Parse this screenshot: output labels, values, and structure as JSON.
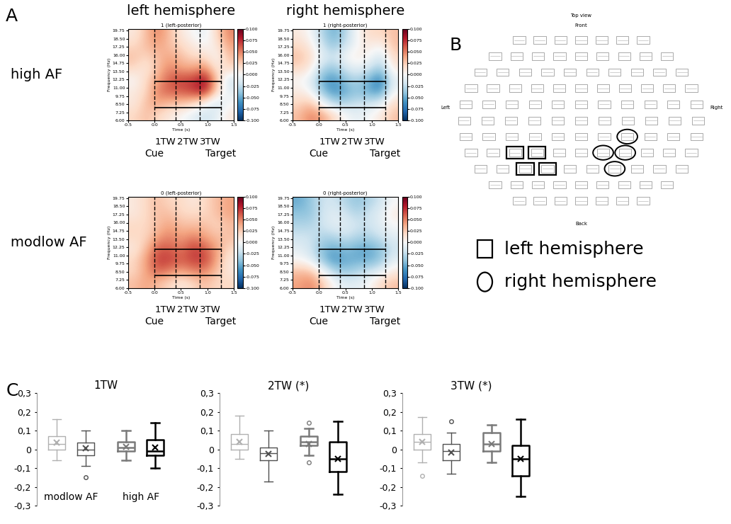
{
  "panel_labels": [
    "A",
    "B",
    "C"
  ],
  "chart_data": [
    {
      "type": "heatmap",
      "columns": [
        "left hemisphere",
        "right hemisphere"
      ],
      "rows": [
        "high AF",
        "modlow AF"
      ],
      "xlabel": "Time (s)",
      "ylabel": "Frequency (Hz)",
      "xlim": [
        -0.5,
        1.5
      ],
      "xticks": [
        -0.5,
        0.0,
        0.5,
        1.0,
        1.5
      ],
      "ylim": [
        6,
        20
      ],
      "yticks": [
        {
          "value": 6,
          "label": "6.00"
        },
        {
          "value": 7.25,
          "label": "7.25"
        },
        {
          "value": 8.5,
          "label": "8.50"
        },
        {
          "value": 9.75,
          "label": "9.75"
        },
        {
          "value": 11,
          "label": "11.00"
        },
        {
          "value": 12.25,
          "label": "12.25"
        },
        {
          "value": 13.5,
          "label": "13.50"
        },
        {
          "value": 14.75,
          "label": "14.75"
        },
        {
          "value": 16,
          "label": "16.00"
        },
        {
          "value": 17.25,
          "label": "17.25"
        },
        {
          "value": 18.5,
          "label": "18.50"
        },
        {
          "value": 19.75,
          "label": "19.75"
        }
      ],
      "colorbar": {
        "range": [
          -0.1,
          0.1
        ],
        "ticks": [
          {
            "value": -0.1,
            "label": "-0.100"
          },
          {
            "value": -0.075,
            "label": "-0.075"
          },
          {
            "value": -0.05,
            "label": "-0.050"
          },
          {
            "value": -0.025,
            "label": "-0.025"
          },
          {
            "value": 0,
            "label": "0.000"
          },
          {
            "value": 0.025,
            "label": "0.025"
          },
          {
            "value": 0.05,
            "label": "0.050"
          },
          {
            "value": 0.075,
            "label": "0.075"
          },
          {
            "value": 0.1,
            "label": "0.100"
          }
        ]
      },
      "window_bounds": [
        0.0,
        0.4,
        0.85,
        1.25
      ],
      "window_labels": [
        "1TW",
        "2TW",
        "3TW"
      ],
      "events": [
        {
          "label": "Cue",
          "time": 0.0
        },
        {
          "label": "Target",
          "time": 1.25
        }
      ],
      "band": [
        8,
        12
      ],
      "panels": [
        {
          "title": "1 (left-posterior)",
          "cells": [
            [
              0.02,
              0.03,
              0.02,
              0.01,
              0.0,
              -0.01,
              -0.02,
              -0.01,
              0.01
            ],
            [
              0.01,
              0.03,
              0.04,
              0.03,
              0.03,
              0.02,
              0.0,
              -0.02,
              0.0
            ],
            [
              0.01,
              0.02,
              0.05,
              0.06,
              0.06,
              0.07,
              0.08,
              0.02,
              -0.01
            ],
            [
              0.0,
              0.02,
              0.04,
              0.06,
              0.07,
              0.07,
              0.09,
              0.03,
              -0.02
            ],
            [
              0.02,
              0.01,
              0.03,
              0.05,
              0.04,
              0.04,
              0.05,
              0.01,
              0.02
            ],
            [
              0.03,
              0.02,
              0.03,
              0.04,
              0.03,
              0.02,
              0.02,
              0.0,
              0.03
            ],
            [
              0.02,
              0.03,
              0.04,
              0.03,
              0.02,
              0.01,
              0.0,
              0.01,
              0.04
            ],
            [
              0.01,
              0.03,
              0.05,
              0.03,
              0.01,
              0.0,
              -0.01,
              0.02,
              0.05
            ]
          ]
        },
        {
          "title": "1 (right-posterior)",
          "cells": [
            [
              0.03,
              0.05,
              0.04,
              0.02,
              0.0,
              -0.01,
              0.0,
              0.01,
              0.03
            ],
            [
              0.02,
              0.03,
              0.0,
              -0.03,
              -0.03,
              -0.02,
              -0.02,
              -0.01,
              0.02
            ],
            [
              0.01,
              0.0,
              -0.04,
              -0.06,
              -0.05,
              -0.04,
              -0.05,
              -0.06,
              0.0
            ],
            [
              0.0,
              -0.01,
              -0.05,
              -0.06,
              -0.04,
              -0.03,
              -0.05,
              -0.07,
              -0.01
            ],
            [
              0.02,
              0.01,
              -0.03,
              -0.04,
              -0.02,
              -0.01,
              -0.02,
              -0.04,
              0.01
            ],
            [
              0.03,
              0.02,
              -0.01,
              -0.02,
              0.0,
              0.01,
              0.0,
              -0.02,
              0.02
            ],
            [
              0.02,
              0.01,
              -0.02,
              -0.04,
              -0.02,
              0.0,
              0.01,
              0.0,
              0.03
            ],
            [
              0.01,
              0.0,
              -0.03,
              -0.05,
              -0.03,
              0.0,
              0.02,
              0.02,
              0.03
            ]
          ]
        },
        {
          "title": "0 (left-posterior)",
          "cells": [
            [
              0.03,
              0.04,
              0.03,
              0.02,
              0.01,
              0.02,
              0.03,
              0.02,
              0.02
            ],
            [
              0.02,
              0.04,
              0.06,
              0.05,
              0.04,
              0.05,
              0.05,
              0.03,
              0.01
            ],
            [
              0.02,
              0.04,
              0.07,
              0.07,
              0.06,
              0.07,
              0.07,
              0.04,
              0.01
            ],
            [
              0.01,
              0.03,
              0.06,
              0.06,
              0.05,
              0.07,
              0.06,
              0.04,
              0.02
            ],
            [
              0.02,
              0.02,
              0.04,
              0.05,
              0.04,
              0.05,
              0.04,
              0.03,
              0.03
            ],
            [
              0.02,
              0.02,
              0.03,
              0.04,
              0.03,
              0.03,
              0.03,
              0.02,
              0.03
            ],
            [
              0.01,
              0.02,
              0.03,
              0.03,
              0.02,
              0.02,
              0.02,
              0.03,
              0.04
            ],
            [
              0.01,
              0.02,
              0.03,
              0.02,
              0.02,
              0.01,
              0.02,
              0.03,
              0.04
            ]
          ]
        },
        {
          "title": "0 (right-posterior)",
          "cells": [
            [
              0.04,
              0.05,
              0.03,
              0.0,
              -0.01,
              -0.01,
              0.0,
              0.02,
              0.03
            ],
            [
              0.03,
              0.03,
              0.0,
              -0.03,
              -0.04,
              -0.03,
              -0.02,
              -0.01,
              0.01
            ],
            [
              0.0,
              -0.01,
              -0.04,
              -0.06,
              -0.05,
              -0.05,
              -0.05,
              -0.04,
              -0.01
            ],
            [
              -0.01,
              -0.02,
              -0.04,
              -0.05,
              -0.04,
              -0.05,
              -0.05,
              -0.04,
              -0.02
            ],
            [
              -0.02,
              -0.02,
              -0.03,
              -0.03,
              -0.02,
              -0.03,
              -0.03,
              -0.02,
              -0.01
            ],
            [
              -0.03,
              -0.03,
              -0.02,
              -0.01,
              -0.01,
              -0.02,
              -0.02,
              -0.01,
              0.0
            ],
            [
              -0.04,
              -0.04,
              -0.02,
              -0.01,
              -0.02,
              -0.03,
              -0.02,
              -0.01,
              0.01
            ],
            [
              -0.05,
              -0.04,
              -0.02,
              -0.02,
              -0.03,
              -0.04,
              -0.03,
              -0.02,
              0.0
            ]
          ]
        }
      ]
    },
    {
      "type": "box",
      "ylim": [
        -0.3,
        0.3
      ],
      "yticks": [
        {
          "value": -0.3,
          "label": "-0,3"
        },
        {
          "value": -0.2,
          "label": "-0,2"
        },
        {
          "value": -0.1,
          "label": "-0,1"
        },
        0,
        {
          "value": 0.1,
          "label": "0,1"
        },
        {
          "value": 0.2,
          "label": "0,2"
        },
        {
          "value": 0.3,
          "label": "0,3"
        }
      ],
      "tick_labels": "y",
      "group_names": [
        "modlow AF",
        "high AF"
      ],
      "box_colors": [
        "#b0b0b0",
        "#505050",
        "#7a7a7a",
        "#000000"
      ],
      "panels": [
        {
          "title": "1TW",
          "boxes": [
            {
              "whislo": -0.06,
              "q1": 0.0,
              "med": 0.03,
              "q3": 0.07,
              "whishi": 0.16,
              "mean": 0.035,
              "fliers": []
            },
            {
              "whislo": -0.09,
              "q1": -0.03,
              "med": 0.0,
              "q3": 0.035,
              "whishi": 0.1,
              "mean": 0.005,
              "fliers": [
                -0.15
              ]
            },
            {
              "whislo": -0.06,
              "q1": -0.01,
              "med": 0.01,
              "q3": 0.04,
              "whishi": 0.1,
              "mean": 0.015,
              "fliers": []
            },
            {
              "whislo": -0.1,
              "q1": -0.03,
              "med": -0.01,
              "q3": 0.05,
              "whishi": 0.14,
              "mean": 0.01,
              "fliers": []
            }
          ]
        },
        {
          "title": "2TW (*)",
          "boxes": [
            {
              "whislo": -0.05,
              "q1": 0.0,
              "med": 0.03,
              "q3": 0.08,
              "whishi": 0.18,
              "mean": 0.04,
              "fliers": []
            },
            {
              "whislo": -0.17,
              "q1": -0.06,
              "med": -0.02,
              "q3": 0.01,
              "whishi": 0.1,
              "mean": -0.025,
              "fliers": []
            },
            {
              "whislo": -0.03,
              "q1": 0.02,
              "med": 0.04,
              "q3": 0.07,
              "whishi": 0.11,
              "mean": 0.03,
              "fliers": [
                0.14,
                -0.07
              ]
            },
            {
              "whislo": -0.24,
              "q1": -0.12,
              "med": -0.05,
              "q3": 0.04,
              "whishi": 0.15,
              "mean": -0.05,
              "fliers": []
            }
          ]
        },
        {
          "title": "3TW (*)",
          "boxes": [
            {
              "whislo": -0.07,
              "q1": 0.0,
              "med": 0.04,
              "q3": 0.08,
              "whishi": 0.17,
              "mean": 0.04,
              "fliers": [
                -0.14
              ]
            },
            {
              "whislo": -0.13,
              "q1": -0.06,
              "med": -0.01,
              "q3": 0.03,
              "whishi": 0.09,
              "mean": -0.015,
              "fliers": [
                0.15
              ]
            },
            {
              "whislo": -0.07,
              "q1": -0.01,
              "med": 0.03,
              "q3": 0.09,
              "whishi": 0.13,
              "mean": 0.03,
              "fliers": []
            },
            {
              "whislo": -0.25,
              "q1": -0.14,
              "med": -0.05,
              "q3": 0.02,
              "whishi": 0.16,
              "mean": -0.05,
              "fliers": []
            }
          ]
        }
      ]
    }
  ],
  "sensor_map": {
    "title": "Top view",
    "front": "Front",
    "back": "Back",
    "left": "Left",
    "right": "Right",
    "legend": [
      {
        "label": "left hemisphere",
        "marker": "square"
      },
      {
        "label": "right hemisphere",
        "marker": "circle"
      }
    ]
  }
}
